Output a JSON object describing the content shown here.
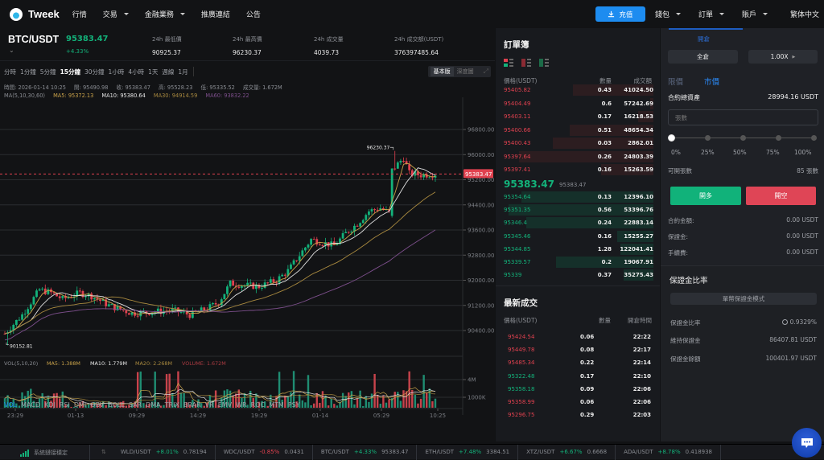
{
  "topnav": {
    "brand": "Tweek",
    "items": [
      {
        "label": "行情",
        "dropdown": false
      },
      {
        "label": "交易",
        "dropdown": true
      },
      {
        "label": "金融業務",
        "dropdown": true
      },
      {
        "label": "推廣連結",
        "dropdown": false
      },
      {
        "label": "公告",
        "dropdown": false
      }
    ],
    "deposit_label": "充值",
    "right_items": [
      {
        "label": "錢包"
      },
      {
        "label": "訂單"
      },
      {
        "label": "賬戶"
      }
    ],
    "language": "繁体中文"
  },
  "ticker": {
    "pair": "BTC/USDT",
    "last_price": "95383.47",
    "change": "+4.33%",
    "stats": [
      {
        "label": "24h 最低價",
        "value": "90925.37"
      },
      {
        "label": "24h 最高價",
        "value": "96230.37"
      },
      {
        "label": "24h 成交量",
        "value": "4039.73"
      },
      {
        "label": "24h 成交額(USDT)",
        "value": "376397485.64"
      }
    ]
  },
  "chart_toolbar": {
    "timeframes": [
      "分時",
      "1分鐘",
      "5分鐘",
      "15分鐘",
      "30分鐘",
      "1小時",
      "4小時",
      "1天",
      "週線",
      "1月"
    ],
    "active_timeframe": "15分鐘",
    "views": [
      "基本版",
      "深度圖"
    ],
    "active_view": "基本版"
  },
  "ohlc": {
    "time": "時間: 2026-01-14 10:25",
    "open": "開: 95490.98",
    "close": "收: 95383.47",
    "high": "高: 95528.23",
    "low": "低: 95335.52",
    "volume": "成交量: 1.672M"
  },
  "ma": {
    "label": "MA(5,10,30,60)",
    "ma5": "MA5: 95372.13",
    "ma10": "MA10: 95380.64",
    "ma30": "MA30: 94914.59",
    "ma60": "MA60: 93832.22"
  },
  "vol": {
    "label": "VOL(5,10,20)",
    "ma5": "MA5: 1.388M",
    "ma10": "MA10: 1.779M",
    "ma20": "MA20: 2.268M",
    "volume": "VOLUME: 1.672M"
  },
  "indicators": [
    "VOL",
    "MACD",
    "KDJ",
    "RSI",
    "DMI",
    "OBV",
    "BOLL",
    "SAR",
    "DMA",
    "TRIX",
    "BRAR",
    "VR",
    "EMV",
    "WR",
    "ROC",
    "MTM",
    "PSY"
  ],
  "active_indicator": "VOL",
  "colors": {
    "up": "#13b27a",
    "down": "#e0414f",
    "accent": "#1d8cf0",
    "ma5": "#c9a24a",
    "ma10": "#e0e0e0",
    "ma30": "#a8893f",
    "ma60": "#7d4f8c"
  },
  "chart_data": {
    "type": "candlestick",
    "title": "BTC/USDT 15分鐘",
    "y_ticks": [
      "96800.00",
      "96000.00",
      "95200.00",
      "94400.00",
      "93600.00",
      "92800.00",
      "92000.00",
      "91200.00",
      "90400.00"
    ],
    "x_ticks": [
      "23:29",
      "01-13",
      "09:29",
      "14:29",
      "19:29",
      "01-14",
      "05:29",
      "10:25"
    ],
    "vol_ticks": [
      "4M",
      "1000K"
    ],
    "current_price_label": "95383.47",
    "high_marker": "96230.37",
    "low_marker": "90152.81",
    "ylim": [
      90000,
      97000
    ]
  },
  "orderbook": {
    "title": "訂單簿",
    "headers": [
      "價格(USDT)",
      "數量",
      "成交額"
    ],
    "asks": [
      {
        "price": "95405.82",
        "qty": "0.43",
        "total": "41024.50",
        "depth": 0.54
      },
      {
        "price": "95404.49",
        "qty": "0.6",
        "total": "57242.69",
        "depth": 0.02
      },
      {
        "price": "95403.11",
        "qty": "0.17",
        "total": "16218.53",
        "depth": 0.1
      },
      {
        "price": "95400.66",
        "qty": "0.51",
        "total": "48654.34",
        "depth": 0.56
      },
      {
        "price": "95400.43",
        "qty": "0.03",
        "total": "2862.01",
        "depth": 0.67
      },
      {
        "price": "95397.64",
        "qty": "0.26",
        "total": "24803.39",
        "depth": 0.9
      },
      {
        "price": "95397.41",
        "qty": "0.16",
        "total": "15263.59",
        "depth": 0.35
      }
    ],
    "mid_price": "95383.47",
    "mid_sub": "95383.47",
    "bids": [
      {
        "price": "95354.64",
        "qty": "0.13",
        "total": "12396.10",
        "depth": 0.88
      },
      {
        "price": "95351.35",
        "qty": "0.56",
        "total": "53396.76",
        "depth": 0.97
      },
      {
        "price": "95346.4",
        "qty": "0.24",
        "total": "22883.14",
        "depth": 0.85
      },
      {
        "price": "95345.46",
        "qty": "0.16",
        "total": "15255.27",
        "depth": 0.24
      },
      {
        "price": "95344.85",
        "qty": "1.28",
        "total": "122041.41",
        "depth": 0.22
      },
      {
        "price": "95339.57",
        "qty": "0.2",
        "total": "19067.91",
        "depth": 0.65
      },
      {
        "price": "95339",
        "qty": "0.37",
        "total": "35275.43",
        "depth": 0.2
      }
    ]
  },
  "trades": {
    "title": "最新成交",
    "headers": [
      "價格(USDT)",
      "數量",
      "開倉時間"
    ],
    "rows": [
      {
        "price": "95424.54",
        "qty": "0.06",
        "time": "22:22",
        "side": "down"
      },
      {
        "price": "95449.78",
        "qty": "0.08",
        "time": "22:17",
        "side": "down"
      },
      {
        "price": "95485.34",
        "qty": "0.22",
        "time": "22:14",
        "side": "down"
      },
      {
        "price": "95322.48",
        "qty": "0.17",
        "time": "22:10",
        "side": "up"
      },
      {
        "price": "95358.18",
        "qty": "0.09",
        "time": "22:06",
        "side": "up"
      },
      {
        "price": "95358.99",
        "qty": "0.06",
        "time": "22:06",
        "side": "down"
      },
      {
        "price": "95296.75",
        "qty": "0.29",
        "time": "22:03",
        "side": "down"
      }
    ]
  },
  "order_panel": {
    "tab": "開倉",
    "margin_mode": "全倉",
    "leverage": "1.00X",
    "order_types": [
      "限價",
      "市價"
    ],
    "active_order_type": "市價",
    "total_assets_label": "合約總資產",
    "total_assets_value": "28994.16 USDT",
    "qty_placeholder": "張數",
    "slider_marks": [
      "0%",
      "25%",
      "50%",
      "75%",
      "100%"
    ],
    "available_label": "可開張數",
    "available_value": "85 張數",
    "long_label": "開多",
    "short_label": "開空",
    "details": [
      {
        "label": "合約金額:",
        "value": "0.00 USDT"
      },
      {
        "label": "保證金:",
        "value": "0.00 USDT"
      },
      {
        "label": "手續費:",
        "value": "0.00 USDT"
      }
    ]
  },
  "margin": {
    "title": "保證金比率",
    "mode_button": "單幣保證金模式",
    "rows": [
      {
        "label": "保證金比率",
        "value": "0.9329%"
      },
      {
        "label": "維持保證金",
        "value": "86407.81 USDT"
      },
      {
        "label": "保證金餘額",
        "value": "100401.97 USDT"
      }
    ]
  },
  "footer": {
    "status": "系統鏈接穩定",
    "tickers": [
      {
        "pair": "WLD/USDT",
        "change": "+8.01%",
        "price": "0.78194",
        "dir": "up"
      },
      {
        "pair": "WDC/USDT",
        "change": "-0.85%",
        "price": "0.0431",
        "dir": "down"
      },
      {
        "pair": "BTC/USDT",
        "change": "+4.33%",
        "price": "95383.47",
        "dir": "up"
      },
      {
        "pair": "ETH/USDT",
        "change": "+7.48%",
        "price": "3384.51",
        "dir": "up"
      },
      {
        "pair": "XTZ/USDT",
        "change": "+6.67%",
        "price": "0.6668",
        "dir": "up"
      },
      {
        "pair": "ADA/USDT",
        "change": "+8.78%",
        "price": "0.418938",
        "dir": "up"
      }
    ]
  }
}
